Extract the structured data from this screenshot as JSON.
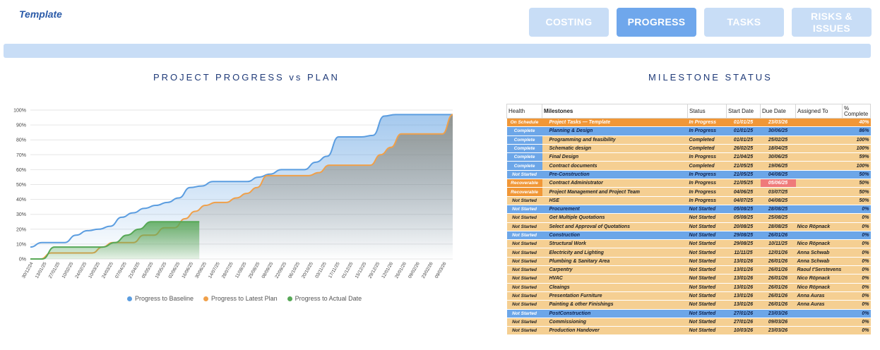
{
  "template_label": "Template",
  "tabs": [
    {
      "label": "COSTING",
      "active": false
    },
    {
      "label": "PROGRESS",
      "active": true
    },
    {
      "label": "TASKS",
      "active": false
    },
    {
      "label": "RISKS &\nISSUES",
      "active": false
    }
  ],
  "left_title": "PROJECT PROGRESS vs PLAN",
  "right_title": "MILESTONE STATUS",
  "colors": {
    "baseline": "#5b9de0",
    "latest": "#f0a04a",
    "actual": "#57a857"
  },
  "chart_data": {
    "type": "area",
    "y_ticks": [
      "0%",
      "10%",
      "20%",
      "30%",
      "40%",
      "50%",
      "60%",
      "70%",
      "80%",
      "90%",
      "100%"
    ],
    "ylim": [
      0,
      100
    ],
    "x_ticks": [
      "30/12/24",
      "13/01/25",
      "27/01/25",
      "10/02/25",
      "24/02/25",
      "10/03/25",
      "24/03/25",
      "07/04/25",
      "21/04/25",
      "05/05/25",
      "19/05/25",
      "02/06/25",
      "16/06/25",
      "30/06/25",
      "14/07/25",
      "28/07/25",
      "11/08/25",
      "25/08/25",
      "08/09/25",
      "22/09/25",
      "06/10/25",
      "20/10/25",
      "03/11/25",
      "17/11/25",
      "01/12/25",
      "15/12/25",
      "29/12/25",
      "12/01/26",
      "26/01/26",
      "09/02/26",
      "23/02/26",
      "09/03/26"
    ],
    "series": [
      {
        "name": "Progress to Baseline",
        "values": [
          8,
          11,
          11,
          11,
          16,
          19,
          20,
          22,
          28,
          31,
          34,
          36,
          38,
          41,
          48,
          49,
          52,
          52,
          52,
          52,
          55,
          57,
          60,
          60,
          60,
          65,
          69,
          82,
          82,
          82,
          83,
          96,
          97,
          97,
          97,
          97,
          97,
          97
        ]
      },
      {
        "name": "Progress to Latest Plan",
        "values": [
          0,
          0,
          4,
          4,
          4,
          4,
          4,
          8,
          11,
          11,
          11,
          16,
          16,
          21,
          21,
          27,
          32,
          36,
          38,
          38,
          41,
          44,
          48,
          56,
          56,
          56,
          56,
          56,
          58,
          63,
          63,
          63,
          63,
          63,
          70,
          75,
          84,
          84,
          84,
          84,
          84,
          97
        ]
      },
      {
        "name": "Progress to Actual Date",
        "values": [
          0,
          0,
          8,
          8,
          8,
          8,
          8,
          11,
          16,
          20,
          25,
          25,
          25,
          25,
          25
        ]
      }
    ]
  },
  "table": {
    "headers": [
      "Health",
      "Milestones",
      "Status",
      "Start Date",
      "Due Date",
      "Assigned To",
      "% Complete"
    ],
    "rows": [
      {
        "health": "On Schedule",
        "milestone": "Project Tasks — Template",
        "status": "In Progress",
        "start": "01/01/25",
        "due": "23/03/26",
        "assigned": "",
        "pct": "40%",
        "row": "header-orange",
        "hc": "org"
      },
      {
        "health": "Complete",
        "milestone": "Planning & Design",
        "status": "In Progress",
        "start": "01/01/25",
        "due": "30/06/25",
        "assigned": "",
        "pct": "86%",
        "row": "blue",
        "hc": "blue"
      },
      {
        "health": "Complete",
        "milestone": "Programming and feasibility",
        "status": "Completed",
        "start": "01/01/25",
        "due": "25/02/25",
        "assigned": "",
        "pct": "100%",
        "row": "orange",
        "hc": "blue"
      },
      {
        "health": "Complete",
        "milestone": "Schematic design",
        "status": "Completed",
        "start": "26/02/25",
        "due": "18/04/25",
        "assigned": "",
        "pct": "100%",
        "row": "orange",
        "hc": "blue"
      },
      {
        "health": "Complete",
        "milestone": "Final Design",
        "status": "In Progress",
        "start": "21/04/25",
        "due": "30/06/25",
        "assigned": "",
        "pct": "59%",
        "row": "orange",
        "hc": "blue"
      },
      {
        "health": "Complete",
        "milestone": "Contract documents",
        "status": "Completed",
        "start": "21/05/25",
        "due": "19/06/25",
        "assigned": "",
        "pct": "100%",
        "row": "orange",
        "hc": "blue"
      },
      {
        "health": "Not Started",
        "milestone": "Pre-Construction",
        "status": "In Progress",
        "start": "21/05/25",
        "due": "04/08/25",
        "assigned": "",
        "pct": "50%",
        "row": "blue",
        "hc": "blue"
      },
      {
        "health": "Recoverable",
        "milestone": "Contract Administrator",
        "status": "In Progress",
        "start": "21/05/25",
        "due": "05/06/25",
        "assigned": "",
        "pct": "50%",
        "row": "orange",
        "hc": "org",
        "red": true
      },
      {
        "health": "Recoverable",
        "milestone": "Project Management and Project Team",
        "status": "In Progress",
        "start": "04/06/25",
        "due": "03/07/25",
        "assigned": "",
        "pct": "50%",
        "row": "orange",
        "hc": "org"
      },
      {
        "health": "Not Started",
        "milestone": "HSE",
        "status": "In Progress",
        "start": "04/07/25",
        "due": "04/08/25",
        "assigned": "",
        "pct": "50%",
        "row": "orange",
        "hc": "none"
      },
      {
        "health": "Not Started",
        "milestone": "Procurement",
        "status": "Not Started",
        "start": "05/08/25",
        "due": "28/08/25",
        "assigned": "",
        "pct": "0%",
        "row": "blue",
        "hc": "blue"
      },
      {
        "health": "Not Started",
        "milestone": "Get Multiple Quotations",
        "status": "Not Started",
        "start": "05/08/25",
        "due": "25/08/25",
        "assigned": "",
        "pct": "0%",
        "row": "orange",
        "hc": "none"
      },
      {
        "health": "Not Started",
        "milestone": "Select and Approval of Quotations",
        "status": "Not Started",
        "start": "20/08/25",
        "due": "28/08/25",
        "assigned": "Nico Röpnack",
        "pct": "0%",
        "row": "orange",
        "hc": "none"
      },
      {
        "health": "Not Started",
        "milestone": "Construction",
        "status": "Not Started",
        "start": "29/08/25",
        "due": "26/01/26",
        "assigned": "",
        "pct": "0%",
        "row": "blue",
        "hc": "blue"
      },
      {
        "health": "Not Started",
        "milestone": "Structural Work",
        "status": "Not Started",
        "start": "29/08/25",
        "due": "10/11/25",
        "assigned": "Nico Röpnack",
        "pct": "0%",
        "row": "orange",
        "hc": "none"
      },
      {
        "health": "Not Started",
        "milestone": "Electricity and Lighting",
        "status": "Not Started",
        "start": "11/11/25",
        "due": "12/01/26",
        "assigned": "Anna Schwab",
        "pct": "0%",
        "row": "orange",
        "hc": "none"
      },
      {
        "health": "Not Started",
        "milestone": "Plumbing & Sanitary Area",
        "status": "Not Started",
        "start": "13/01/26",
        "due": "26/01/26",
        "assigned": "Anna Schwab",
        "pct": "0%",
        "row": "orange",
        "hc": "none"
      },
      {
        "health": "Not Started",
        "milestone": "Carpentry",
        "status": "Not Started",
        "start": "13/01/26",
        "due": "26/01/26",
        "assigned": "Raoul t'Serstevens",
        "pct": "0%",
        "row": "orange",
        "hc": "none"
      },
      {
        "health": "Not Started",
        "milestone": "HVAC",
        "status": "Not Started",
        "start": "13/01/26",
        "due": "26/01/26",
        "assigned": "Nico Röpnack",
        "pct": "0%",
        "row": "orange",
        "hc": "none"
      },
      {
        "health": "Not Started",
        "milestone": "Cleaings",
        "status": "Not Started",
        "start": "13/01/26",
        "due": "26/01/26",
        "assigned": "Nico Röpnack",
        "pct": "0%",
        "row": "orange",
        "hc": "none"
      },
      {
        "health": "Not Started",
        "milestone": "Presentation Furniture",
        "status": "Not Started",
        "start": "13/01/26",
        "due": "26/01/26",
        "assigned": "Anna Auras",
        "pct": "0%",
        "row": "orange",
        "hc": "none"
      },
      {
        "health": "Not Started",
        "milestone": "Painting & other Finishings",
        "status": "Not Started",
        "start": "13/01/26",
        "due": "26/01/26",
        "assigned": "Anna Auras",
        "pct": "0%",
        "row": "orange",
        "hc": "none"
      },
      {
        "health": "Not Started",
        "milestone": "PostConstruction",
        "status": "Not Started",
        "start": "27/01/26",
        "due": "23/03/26",
        "assigned": "",
        "pct": "0%",
        "row": "blue",
        "hc": "blue"
      },
      {
        "health": "Not Started",
        "milestone": "Commissioning",
        "status": "Not Started",
        "start": "27/01/26",
        "due": "09/03/26",
        "assigned": "",
        "pct": "0%",
        "row": "orange",
        "hc": "none"
      },
      {
        "health": "Not Started",
        "milestone": "Production Handover",
        "status": "Not Started",
        "start": "10/03/26",
        "due": "23/03/26",
        "assigned": "",
        "pct": "0%",
        "row": "orange",
        "hc": "none"
      }
    ]
  }
}
